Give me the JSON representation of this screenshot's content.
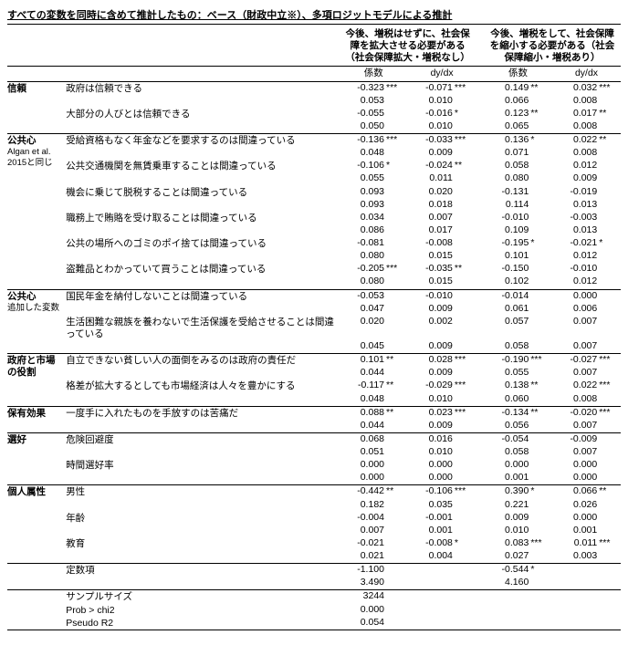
{
  "title": "すべての変数を同時に含めて推計したもの：ベース（財政中立※）、多項ロジットモデルによる推計",
  "headers": {
    "col1": "今後、増税はせずに、社会保障を拡大させる必要がある（社会保障拡大・増税なし）",
    "col2": "今後、増税をして、社会保障を縮小する必要がある（社会保障縮小・増税あり）",
    "sub_coef": "係数",
    "sub_dydx": "dy/dx"
  },
  "groups": [
    {
      "cat": "信頼",
      "rows": [
        {
          "label": "政府は信頼できる",
          "a": {
            "c": "-0.323",
            "cs": "***",
            "d": "-0.071",
            "ds": "***"
          },
          "b": {
            "c": "0.149",
            "cs": "**",
            "d": "0.032",
            "ds": "***"
          },
          "se": {
            "ac": "0.053",
            "ad": "0.010",
            "bc": "0.066",
            "bd": "0.008"
          }
        },
        {
          "label": "大部分の人びとは信頼できる",
          "a": {
            "c": "-0.055",
            "cs": "",
            "d": "-0.016",
            "ds": "*"
          },
          "b": {
            "c": "0.123",
            "cs": "**",
            "d": "0.017",
            "ds": "**"
          },
          "se": {
            "ac": "0.050",
            "ad": "0.010",
            "bc": "0.065",
            "bd": "0.008"
          }
        }
      ]
    },
    {
      "cat": "公共心",
      "catsub": "Algan et al. 2015と同じ",
      "rows": [
        {
          "label": "受給資格もなく年金などを要求するのは間違っている",
          "a": {
            "c": "-0.136",
            "cs": "***",
            "d": "-0.033",
            "ds": "***"
          },
          "b": {
            "c": "0.136",
            "cs": "*",
            "d": "0.022",
            "ds": "**"
          },
          "se": {
            "ac": "0.048",
            "ad": "0.009",
            "bc": "0.071",
            "bd": "0.008"
          }
        },
        {
          "label": "公共交通機関を無賃乗車することは間違っている",
          "a": {
            "c": "-0.106",
            "cs": "*",
            "d": "-0.024",
            "ds": "**"
          },
          "b": {
            "c": "0.058",
            "cs": "",
            "d": "0.012",
            "ds": ""
          },
          "se": {
            "ac": "0.055",
            "ad": "0.011",
            "bc": "0.080",
            "bd": "0.009"
          }
        },
        {
          "label": "機会に乗じて脱税することは間違っている",
          "a": {
            "c": "0.093",
            "cs": "",
            "d": "0.020",
            "ds": ""
          },
          "b": {
            "c": "-0.131",
            "cs": "",
            "d": "-0.019",
            "ds": ""
          },
          "se": {
            "ac": "0.093",
            "ad": "0.018",
            "bc": "0.114",
            "bd": "0.013"
          }
        },
        {
          "label": "職務上で賄賂を受け取ることは間違っている",
          "a": {
            "c": "0.034",
            "cs": "",
            "d": "0.007",
            "ds": ""
          },
          "b": {
            "c": "-0.010",
            "cs": "",
            "d": "-0.003",
            "ds": ""
          },
          "se": {
            "ac": "0.086",
            "ad": "0.017",
            "bc": "0.109",
            "bd": "0.013"
          }
        },
        {
          "label": "公共の場所へのゴミのポイ捨ては間違っている",
          "a": {
            "c": "-0.081",
            "cs": "",
            "d": "-0.008",
            "ds": ""
          },
          "b": {
            "c": "-0.195",
            "cs": "*",
            "d": "-0.021",
            "ds": "*"
          },
          "se": {
            "ac": "0.080",
            "ad": "0.015",
            "bc": "0.101",
            "bd": "0.012"
          }
        },
        {
          "label": "盗難品とわかっていて買うことは間違っている",
          "a": {
            "c": "-0.205",
            "cs": "***",
            "d": "-0.035",
            "ds": "**"
          },
          "b": {
            "c": "-0.150",
            "cs": "",
            "d": "-0.010",
            "ds": ""
          },
          "se": {
            "ac": "0.080",
            "ad": "0.015",
            "bc": "0.102",
            "bd": "0.012"
          }
        }
      ]
    },
    {
      "cat": "公共心",
      "catsub": "追加した変数",
      "rows": [
        {
          "label": "国民年金を納付しないことは間違っている",
          "a": {
            "c": "-0.053",
            "cs": "",
            "d": "-0.010",
            "ds": ""
          },
          "b": {
            "c": "-0.014",
            "cs": "",
            "d": "0.000",
            "ds": ""
          },
          "se": {
            "ac": "0.047",
            "ad": "0.009",
            "bc": "0.061",
            "bd": "0.006"
          }
        },
        {
          "label": "生活困難な親族を養わないで生活保護を受給させることは間違っている",
          "a": {
            "c": "0.020",
            "cs": "",
            "d": "0.002",
            "ds": ""
          },
          "b": {
            "c": "0.057",
            "cs": "",
            "d": "0.007",
            "ds": ""
          },
          "se": {
            "ac": "0.045",
            "ad": "0.009",
            "bc": "0.058",
            "bd": "0.007"
          }
        }
      ]
    },
    {
      "cat": "政府と市場の役割",
      "rows": [
        {
          "label": "自立できない貧しい人の面倒をみるのは政府の責任だ",
          "a": {
            "c": "0.101",
            "cs": "**",
            "d": "0.028",
            "ds": "***"
          },
          "b": {
            "c": "-0.190",
            "cs": "***",
            "d": "-0.027",
            "ds": "***"
          },
          "se": {
            "ac": "0.044",
            "ad": "0.009",
            "bc": "0.055",
            "bd": "0.007"
          }
        },
        {
          "label": "格差が拡大するとしても市場経済は人々を豊かにする",
          "a": {
            "c": "-0.117",
            "cs": "**",
            "d": "-0.029",
            "ds": "***"
          },
          "b": {
            "c": "0.138",
            "cs": "**",
            "d": "0.022",
            "ds": "***"
          },
          "se": {
            "ac": "0.048",
            "ad": "0.010",
            "bc": "0.060",
            "bd": "0.008"
          }
        }
      ]
    },
    {
      "cat": "保有効果",
      "rows": [
        {
          "label": "一度手に入れたものを手放すのは苦痛だ",
          "a": {
            "c": "0.088",
            "cs": "**",
            "d": "0.023",
            "ds": "***"
          },
          "b": {
            "c": "-0.134",
            "cs": "**",
            "d": "-0.020",
            "ds": "***"
          },
          "se": {
            "ac": "0.044",
            "ad": "0.009",
            "bc": "0.056",
            "bd": "0.007"
          }
        }
      ]
    },
    {
      "cat": "選好",
      "rows": [
        {
          "label": "危険回避度",
          "a": {
            "c": "0.068",
            "cs": "",
            "d": "0.016",
            "ds": ""
          },
          "b": {
            "c": "-0.054",
            "cs": "",
            "d": "-0.009",
            "ds": ""
          },
          "se": {
            "ac": "0.051",
            "ad": "0.010",
            "bc": "0.058",
            "bd": "0.007"
          }
        },
        {
          "label": "時間選好率",
          "a": {
            "c": "0.000",
            "cs": "",
            "d": "0.000",
            "ds": ""
          },
          "b": {
            "c": "0.000",
            "cs": "",
            "d": "0.000",
            "ds": ""
          },
          "se": {
            "ac": "0.000",
            "ad": "0.000",
            "bc": "0.001",
            "bd": "0.000"
          }
        }
      ]
    },
    {
      "cat": "個人属性",
      "rows": [
        {
          "label": "男性",
          "a": {
            "c": "-0.442",
            "cs": "**",
            "d": "-0.106",
            "ds": "***"
          },
          "b": {
            "c": "0.390",
            "cs": "*",
            "d": "0.066",
            "ds": "**"
          },
          "se": {
            "ac": "0.182",
            "ad": "0.035",
            "bc": "0.221",
            "bd": "0.026"
          }
        },
        {
          "label": "年齢",
          "a": {
            "c": "-0.004",
            "cs": "",
            "d": "-0.001",
            "ds": ""
          },
          "b": {
            "c": "0.009",
            "cs": "",
            "d": "0.000",
            "ds": ""
          },
          "se": {
            "ac": "0.007",
            "ad": "0.001",
            "bc": "0.010",
            "bd": "0.001"
          }
        },
        {
          "label": "教育",
          "a": {
            "c": "-0.021",
            "cs": "",
            "d": "-0.008",
            "ds": "*"
          },
          "b": {
            "c": "0.083",
            "cs": "***",
            "d": "0.011",
            "ds": "***"
          },
          "se": {
            "ac": "0.021",
            "ad": "0.004",
            "bc": "0.027",
            "bd": "0.003"
          }
        }
      ]
    },
    {
      "cat": "",
      "noTopBorder": false,
      "rows": [
        {
          "label": "定数項",
          "a": {
            "c": "-1.100",
            "cs": "",
            "d": "",
            "ds": ""
          },
          "b": {
            "c": "-0.544",
            "cs": "*",
            "d": "",
            "ds": ""
          },
          "se": {
            "ac": "3.490",
            "ad": "",
            "bc": "4.160",
            "bd": ""
          }
        }
      ]
    }
  ],
  "footer": [
    {
      "label": "サンプルサイズ",
      "val": "3244"
    },
    {
      "label": "Prob > chi2",
      "val": "0.000"
    },
    {
      "label": "Pseudo R2",
      "val": "0.054"
    }
  ]
}
